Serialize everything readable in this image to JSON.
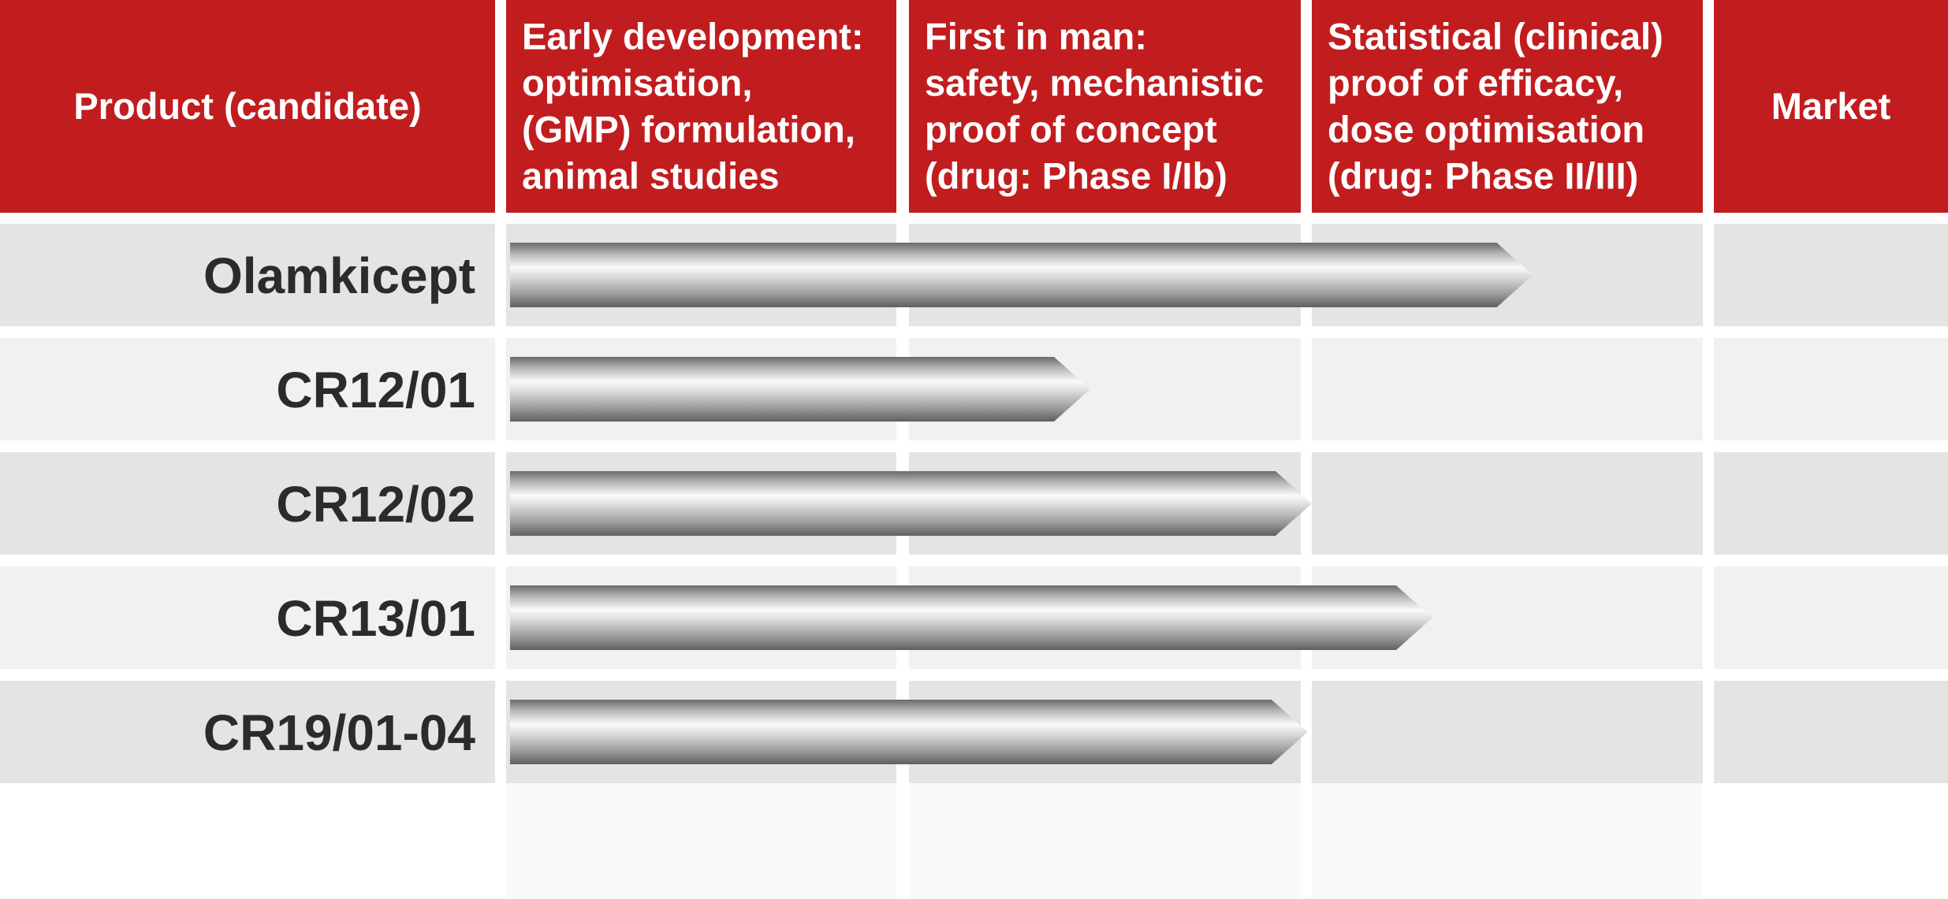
{
  "chart_data": {
    "type": "table",
    "columns": [
      {
        "lines": [
          "Product (candidate)"
        ]
      },
      {
        "lines": [
          "Early development:",
          "optimisation,",
          "(GMP) formulation,",
          "animal studies"
        ]
      },
      {
        "lines": [
          "First in man:",
          "safety, mechanistic",
          "proof of concept",
          "(drug: Phase I/Ib)"
        ]
      },
      {
        "lines": [
          "Statistical (clinical)",
          "proof of efficacy,",
          "dose optimisation",
          "(drug: Phase II/III)"
        ]
      },
      {
        "lines": [
          "Market"
        ]
      }
    ],
    "stages": [
      "Early development",
      "First in man",
      "Statistical (clinical) proof of efficacy",
      "Market"
    ],
    "rows": [
      {
        "product": "Olamkicept",
        "progress": 2.55
      },
      {
        "product": "CR12/01",
        "progress": 1.45
      },
      {
        "product": "CR12/02",
        "progress": 2.0
      },
      {
        "product": "CR13/01",
        "progress": 2.3
      },
      {
        "product": "CR19/01-04",
        "progress": 1.99
      }
    ],
    "progress_unit": "stages completed (0 = start of Early development, 4 = end of Market)",
    "colors": {
      "header": "#c11d1f",
      "header_text": "#ffffff",
      "row_dark": "#e4e4e4",
      "row_light": "#f1f1f1",
      "label_text": "#2b2b2b",
      "arrow_light": "#fbfbfb",
      "arrow_dark": "#5f5f5f"
    }
  }
}
